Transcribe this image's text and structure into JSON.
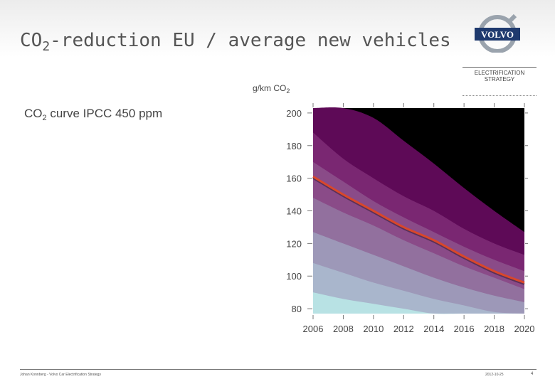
{
  "slide": {
    "title_main": "CO",
    "title_sub": "2",
    "title_rest": "-reduction EU / average new vehicles"
  },
  "branding": {
    "logo_text": "VOLVO",
    "section_label": "ELECTRIFICATION STRATEGY",
    "colors": {
      "logo_blue": "#1f3a6e",
      "logo_ring": "#9aa3ad"
    }
  },
  "legend": {
    "label_main": "CO",
    "label_sub": "2",
    "label_rest": " curve IPCC 450 ppm"
  },
  "footer": {
    "left_text": "Johan Konnberg - Volvo Car Electrification Strategy",
    "date": "2012-10-25",
    "page": "4"
  },
  "chart_data": {
    "type": "area",
    "title": "CO2-reduction EU / average new vehicles",
    "ylabel_main": "g/km CO",
    "ylabel_sub": "2",
    "xlabel": "",
    "x_ticks": [
      2006,
      2008,
      2010,
      2012,
      2014,
      2016,
      2018,
      2020
    ],
    "y_ticks": [
      80,
      100,
      120,
      140,
      160,
      180,
      200
    ],
    "xlim": [
      2006,
      2020
    ],
    "ylim": [
      77,
      203
    ],
    "background_color": "#000000",
    "series": [
      {
        "name": "CO2 curve IPCC 450 ppm",
        "color": "#d9472b",
        "x": [
          2006,
          2008,
          2010,
          2012,
          2014,
          2016,
          2018,
          2020
        ],
        "values": [
          161,
          150,
          140,
          130,
          122,
          112,
          103,
          96
        ]
      }
    ],
    "bands": [
      {
        "color": "#5e0a57",
        "x": [
          2006,
          2008,
          2010,
          2012,
          2014,
          2016,
          2018,
          2020
        ],
        "values": [
          203,
          203,
          197,
          183,
          169,
          154,
          140,
          127
        ]
      },
      {
        "color": "#7a2772",
        "x": [
          2006,
          2008,
          2010,
          2012,
          2014,
          2016,
          2018,
          2020
        ],
        "values": [
          188,
          172,
          160,
          149,
          140,
          129,
          120,
          113
        ]
      },
      {
        "color": "#8a4b88",
        "x": [
          2006,
          2008,
          2010,
          2012,
          2014,
          2016,
          2018,
          2020
        ],
        "values": [
          170,
          158,
          146,
          136,
          127,
          118,
          110,
          103
        ]
      },
      {
        "color": "#92709e",
        "x": [
          2006,
          2008,
          2010,
          2012,
          2014,
          2016,
          2018,
          2020
        ],
        "values": [
          148,
          139,
          131,
          122,
          114,
          106,
          99,
          92
        ]
      },
      {
        "color": "#9d98b8",
        "x": [
          2006,
          2008,
          2010,
          2012,
          2014,
          2016,
          2018,
          2020
        ],
        "values": [
          127,
          120,
          113,
          106,
          99,
          93,
          88,
          84
        ]
      },
      {
        "color": "#a9b6cc",
        "x": [
          2006,
          2008,
          2010,
          2012,
          2014,
          2016,
          2018,
          2020
        ],
        "values": [
          108,
          102,
          96,
          91,
          86,
          82,
          78,
          77
        ]
      },
      {
        "color": "#b8e2e4",
        "x": [
          2006,
          2008,
          2010,
          2012,
          2014,
          2016,
          2018,
          2020
        ],
        "values": [
          90,
          86,
          83,
          80,
          77,
          77,
          77,
          77
        ]
      }
    ]
  }
}
